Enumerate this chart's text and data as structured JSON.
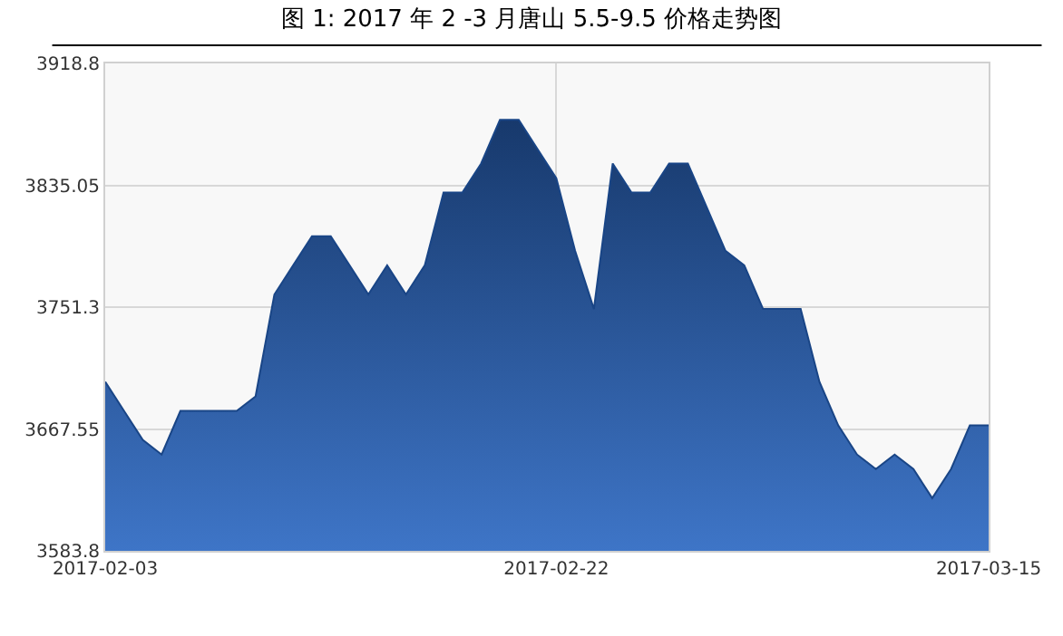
{
  "chart_data": {
    "type": "area",
    "title": "图 1: 2017 年 2 -3 月唐山 5.5-9.5 价格走势图",
    "categories": [
      "2017-02-03",
      null,
      null,
      null,
      null,
      null,
      null,
      null,
      null,
      null,
      null,
      null,
      null,
      null,
      null,
      null,
      null,
      null,
      null,
      null,
      null,
      null,
      null,
      null,
      "2017-02-22",
      null,
      null,
      null,
      null,
      null,
      null,
      null,
      null,
      null,
      null,
      null,
      null,
      null,
      null,
      null,
      null,
      null,
      null,
      null,
      null,
      null,
      null,
      "2017-03-15"
    ],
    "series": [
      {
        "color": "#2463c0",
        "values": [
          3700,
          3680,
          3660,
          3650,
          3680,
          3680,
          3680,
          3680,
          3690,
          3760,
          3780,
          3800,
          3800,
          3780,
          3760,
          3780,
          3760,
          3780,
          3830,
          3830,
          3850,
          3880,
          3880,
          3860,
          3840,
          3790,
          3750,
          3850,
          3830,
          3830,
          3850,
          3850,
          3820,
          3790,
          3780,
          3750,
          3750,
          3750,
          3700,
          3670,
          3650,
          3640,
          3650,
          3640,
          3620,
          3640,
          3670,
          3670
        ]
      }
    ],
    "ylim": [
      3583.8,
      3918.8
    ],
    "yticks": [
      3583.8,
      3667.55,
      3751.3,
      3835.05,
      3918.8
    ],
    "grid": true,
    "legend": false
  }
}
